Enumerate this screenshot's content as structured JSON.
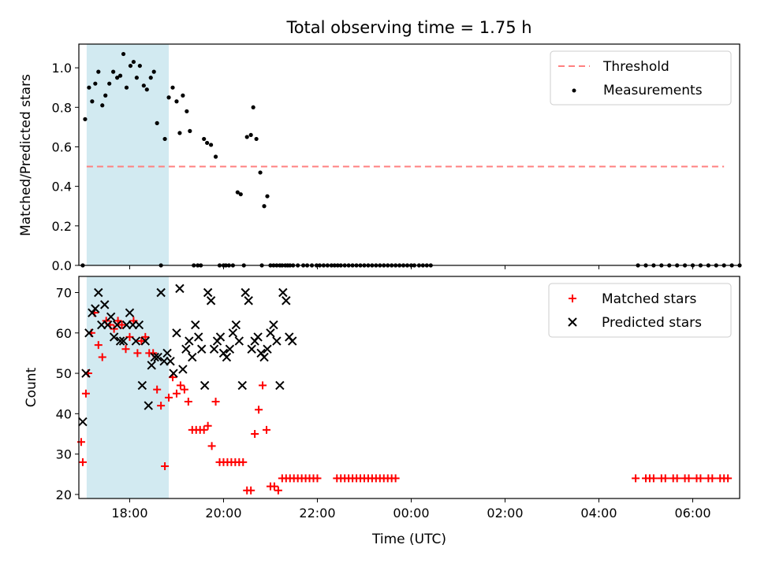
{
  "colors": {
    "shade": "#add8e6",
    "threshold": "#ff8080",
    "measurement": "#000000",
    "matched": "#ff0000",
    "predicted": "#000000"
  },
  "chart_data": [
    {
      "type": "scatter",
      "title": "Total observing time = 1.75 h",
      "xlabel": "",
      "ylabel": "Matched/Predicted stars",
      "xlim": [
        "16:55",
        "07:00"
      ],
      "ylim": [
        0,
        1.12
      ],
      "yticks": [
        "0.0",
        "0.2",
        "0.4",
        "0.6",
        "0.8",
        "1.0"
      ],
      "shaded_interval": [
        "17:05",
        "18:50"
      ],
      "legend_position": "top-right",
      "legend": [
        "Threshold",
        "Measurements"
      ],
      "threshold": {
        "name": "Threshold",
        "y": 0.5,
        "x_range": [
          "17:05",
          "06:40"
        ]
      },
      "series": [
        {
          "name": "Measurements",
          "x": [
            "17:00",
            "17:03",
            "17:08",
            "17:12",
            "17:16",
            "17:20",
            "17:25",
            "17:29",
            "17:34",
            "17:39",
            "17:44",
            "17:48",
            "17:52",
            "17:56",
            "18:01",
            "18:05",
            "18:09",
            "18:13",
            "18:18",
            "18:22",
            "18:27",
            "18:31",
            "18:35",
            "18:40",
            "18:45",
            "18:50",
            "18:55",
            "19:00",
            "19:04",
            "19:08",
            "19:13",
            "19:17",
            "19:22",
            "19:27",
            "19:31",
            "19:35",
            "19:39",
            "19:44",
            "19:50",
            "19:55",
            "20:00",
            "20:03",
            "20:07",
            "20:12",
            "20:18",
            "20:22",
            "20:26",
            "20:30",
            "20:35",
            "20:38",
            "20:42",
            "20:47",
            "20:49",
            "20:52",
            "20:56",
            "21:00",
            "21:04",
            "21:08",
            "21:12",
            "21:15",
            "21:19",
            "21:22",
            "21:25",
            "21:29",
            "21:35",
            "21:42",
            "21:47",
            "21:53",
            "21:59",
            "22:03",
            "22:08",
            "22:13",
            "22:18",
            "22:22",
            "22:26",
            "22:30",
            "22:35",
            "22:40",
            "22:45",
            "22:50",
            "22:55",
            "23:00",
            "23:05",
            "23:10",
            "23:15",
            "23:20",
            "23:25",
            "23:30",
            "23:35",
            "23:40",
            "23:45",
            "23:50",
            "23:55",
            "00:00",
            "00:04",
            "00:10",
            "00:15",
            "00:20",
            "00:25",
            "04:50",
            "05:00",
            "05:10",
            "05:20",
            "05:30",
            "05:40",
            "05:50",
            "06:00",
            "06:10",
            "06:20",
            "06:30",
            "06:40",
            "06:50",
            "07:00"
          ],
          "y": [
            0.0,
            0.74,
            0.9,
            0.83,
            0.92,
            0.98,
            0.81,
            0.86,
            0.92,
            0.98,
            0.95,
            0.96,
            1.07,
            0.9,
            1.01,
            1.03,
            0.95,
            1.01,
            0.91,
            0.89,
            0.95,
            0.98,
            0.72,
            0.0,
            0.64,
            0.85,
            0.9,
            0.83,
            0.67,
            0.86,
            0.78,
            0.68,
            0.0,
            0.0,
            0.0,
            0.64,
            0.62,
            0.61,
            0.55,
            0.0,
            0.0,
            0.0,
            0.0,
            0.0,
            0.37,
            0.36,
            0.0,
            0.65,
            0.66,
            0.8,
            0.64,
            0.47,
            0.0,
            0.3,
            0.35,
            0.0,
            0.0,
            0.0,
            0.0,
            0.0,
            0.0,
            0.0,
            0.0,
            0.0,
            0.0,
            0.0,
            0.0,
            0.0,
            0.0,
            0.0,
            0.0,
            0.0,
            0.0,
            0.0,
            0.0,
            0.0,
            0.0,
            0.0,
            0.0,
            0.0,
            0.0,
            0.0,
            0.0,
            0.0,
            0.0,
            0.0,
            0.0,
            0.0,
            0.0,
            0.0,
            0.0,
            0.0,
            0.0,
            0.0,
            0.0,
            0.0,
            0.0,
            0.0,
            0.0,
            0.0,
            0.0,
            0.0,
            0.0,
            0.0,
            0.0,
            0.0,
            0.0,
            0.0,
            0.0,
            0.0,
            0.0,
            0.0,
            0.0
          ]
        }
      ]
    },
    {
      "type": "scatter",
      "title": "",
      "xlabel": "Time (UTC)",
      "ylabel": "Count",
      "xlim": [
        "16:55",
        "07:00"
      ],
      "ylim": [
        19,
        74
      ],
      "xticks": [
        "18:00",
        "20:00",
        "22:00",
        "00:00",
        "02:00",
        "04:00",
        "06:00"
      ],
      "yticks": [
        "20",
        "30",
        "40",
        "50",
        "60",
        "70"
      ],
      "shaded_interval": [
        "17:05",
        "18:50"
      ],
      "legend_position": "top-right",
      "legend": [
        "Matched stars",
        "Predicted stars"
      ],
      "series": [
        {
          "name": "Matched stars",
          "x": [
            "16:58",
            "17:00",
            "17:04",
            "17:07",
            "17:11",
            "17:15",
            "17:20",
            "17:25",
            "17:30",
            "17:35",
            "17:40",
            "17:45",
            "17:50",
            "17:55",
            "18:00",
            "18:05",
            "18:10",
            "18:15",
            "18:20",
            "18:25",
            "18:30",
            "18:35",
            "18:40",
            "18:45",
            "18:50",
            "18:55",
            "19:00",
            "19:05",
            "19:10",
            "19:15",
            "19:20",
            "19:25",
            "19:30",
            "19:35",
            "19:40",
            "19:45",
            "19:50",
            "19:55",
            "20:00",
            "20:05",
            "20:10",
            "20:15",
            "20:20",
            "20:25",
            "20:30",
            "20:35",
            "20:40",
            "20:45",
            "20:50",
            "20:55",
            "21:00",
            "21:05",
            "21:10",
            "21:15",
            "21:20",
            "21:25",
            "21:30",
            "21:35",
            "21:40",
            "21:45",
            "21:50",
            "21:55",
            "22:00",
            "22:25",
            "22:30",
            "22:35",
            "22:40",
            "22:45",
            "22:50",
            "22:55",
            "23:00",
            "23:05",
            "23:10",
            "23:15",
            "23:20",
            "23:25",
            "23:30",
            "23:35",
            "23:40",
            "04:47",
            "05:00",
            "05:05",
            "05:10",
            "05:20",
            "05:25",
            "05:35",
            "05:40",
            "05:50",
            "05:55",
            "06:05",
            "06:10",
            "06:20",
            "06:25",
            "06:35",
            "06:40",
            "06:45"
          ],
          "y": [
            33,
            28,
            45,
            50,
            60,
            65,
            57,
            54,
            63,
            62,
            61,
            63,
            62,
            56,
            59,
            63,
            55,
            58,
            59,
            55,
            55,
            46,
            42,
            27,
            44,
            49,
            45,
            47,
            46,
            43,
            36,
            36,
            36,
            36,
            37,
            32,
            43,
            28,
            28,
            28,
            28,
            28,
            28,
            28,
            21,
            21,
            35,
            41,
            47,
            36,
            22,
            22,
            21,
            24,
            24,
            24,
            24,
            24,
            24,
            24,
            24,
            24,
            24,
            24,
            24,
            24,
            24,
            24,
            24,
            24,
            24,
            24,
            24,
            24,
            24,
            24,
            24,
            24,
            24,
            24,
            24,
            24,
            24,
            24,
            24,
            24,
            24,
            24,
            24,
            24,
            24,
            24,
            24,
            24,
            24,
            24
          ]
        },
        {
          "name": "Predicted stars",
          "x": [
            "17:00",
            "17:04",
            "17:08",
            "17:12",
            "17:16",
            "17:20",
            "17:24",
            "17:28",
            "17:32",
            "17:36",
            "17:40",
            "17:44",
            "17:48",
            "17:52",
            "17:56",
            "18:00",
            "18:04",
            "18:08",
            "18:12",
            "18:16",
            "18:20",
            "18:24",
            "18:28",
            "18:32",
            "18:36",
            "18:40",
            "18:44",
            "18:48",
            "18:52",
            "18:56",
            "19:00",
            "19:04",
            "19:08",
            "19:12",
            "19:16",
            "19:20",
            "19:24",
            "19:28",
            "19:32",
            "19:36",
            "19:40",
            "19:44",
            "19:48",
            "19:52",
            "19:56",
            "20:00",
            "20:04",
            "20:08",
            "20:12",
            "20:16",
            "20:20",
            "20:24",
            "20:28",
            "20:32",
            "20:36",
            "20:40",
            "20:44",
            "20:48",
            "20:52",
            "20:56",
            "21:00",
            "21:04",
            "21:08",
            "21:12",
            "21:16",
            "21:20",
            "21:24",
            "21:28"
          ],
          "y": [
            38,
            50,
            60,
            65,
            66,
            70,
            62,
            67,
            62,
            64,
            59,
            62,
            58,
            58,
            62,
            65,
            62,
            58,
            62,
            47,
            58,
            42,
            52,
            54,
            54,
            70,
            53,
            55,
            53,
            50,
            60,
            71,
            51,
            56,
            58,
            54,
            62,
            59,
            56,
            47,
            70,
            68,
            56,
            58,
            59,
            55,
            54,
            56,
            60,
            62,
            58,
            47,
            70,
            68,
            56,
            58,
            59,
            55,
            54,
            56,
            60,
            62,
            58,
            47,
            70,
            68,
            59,
            58
          ]
        }
      ]
    }
  ]
}
